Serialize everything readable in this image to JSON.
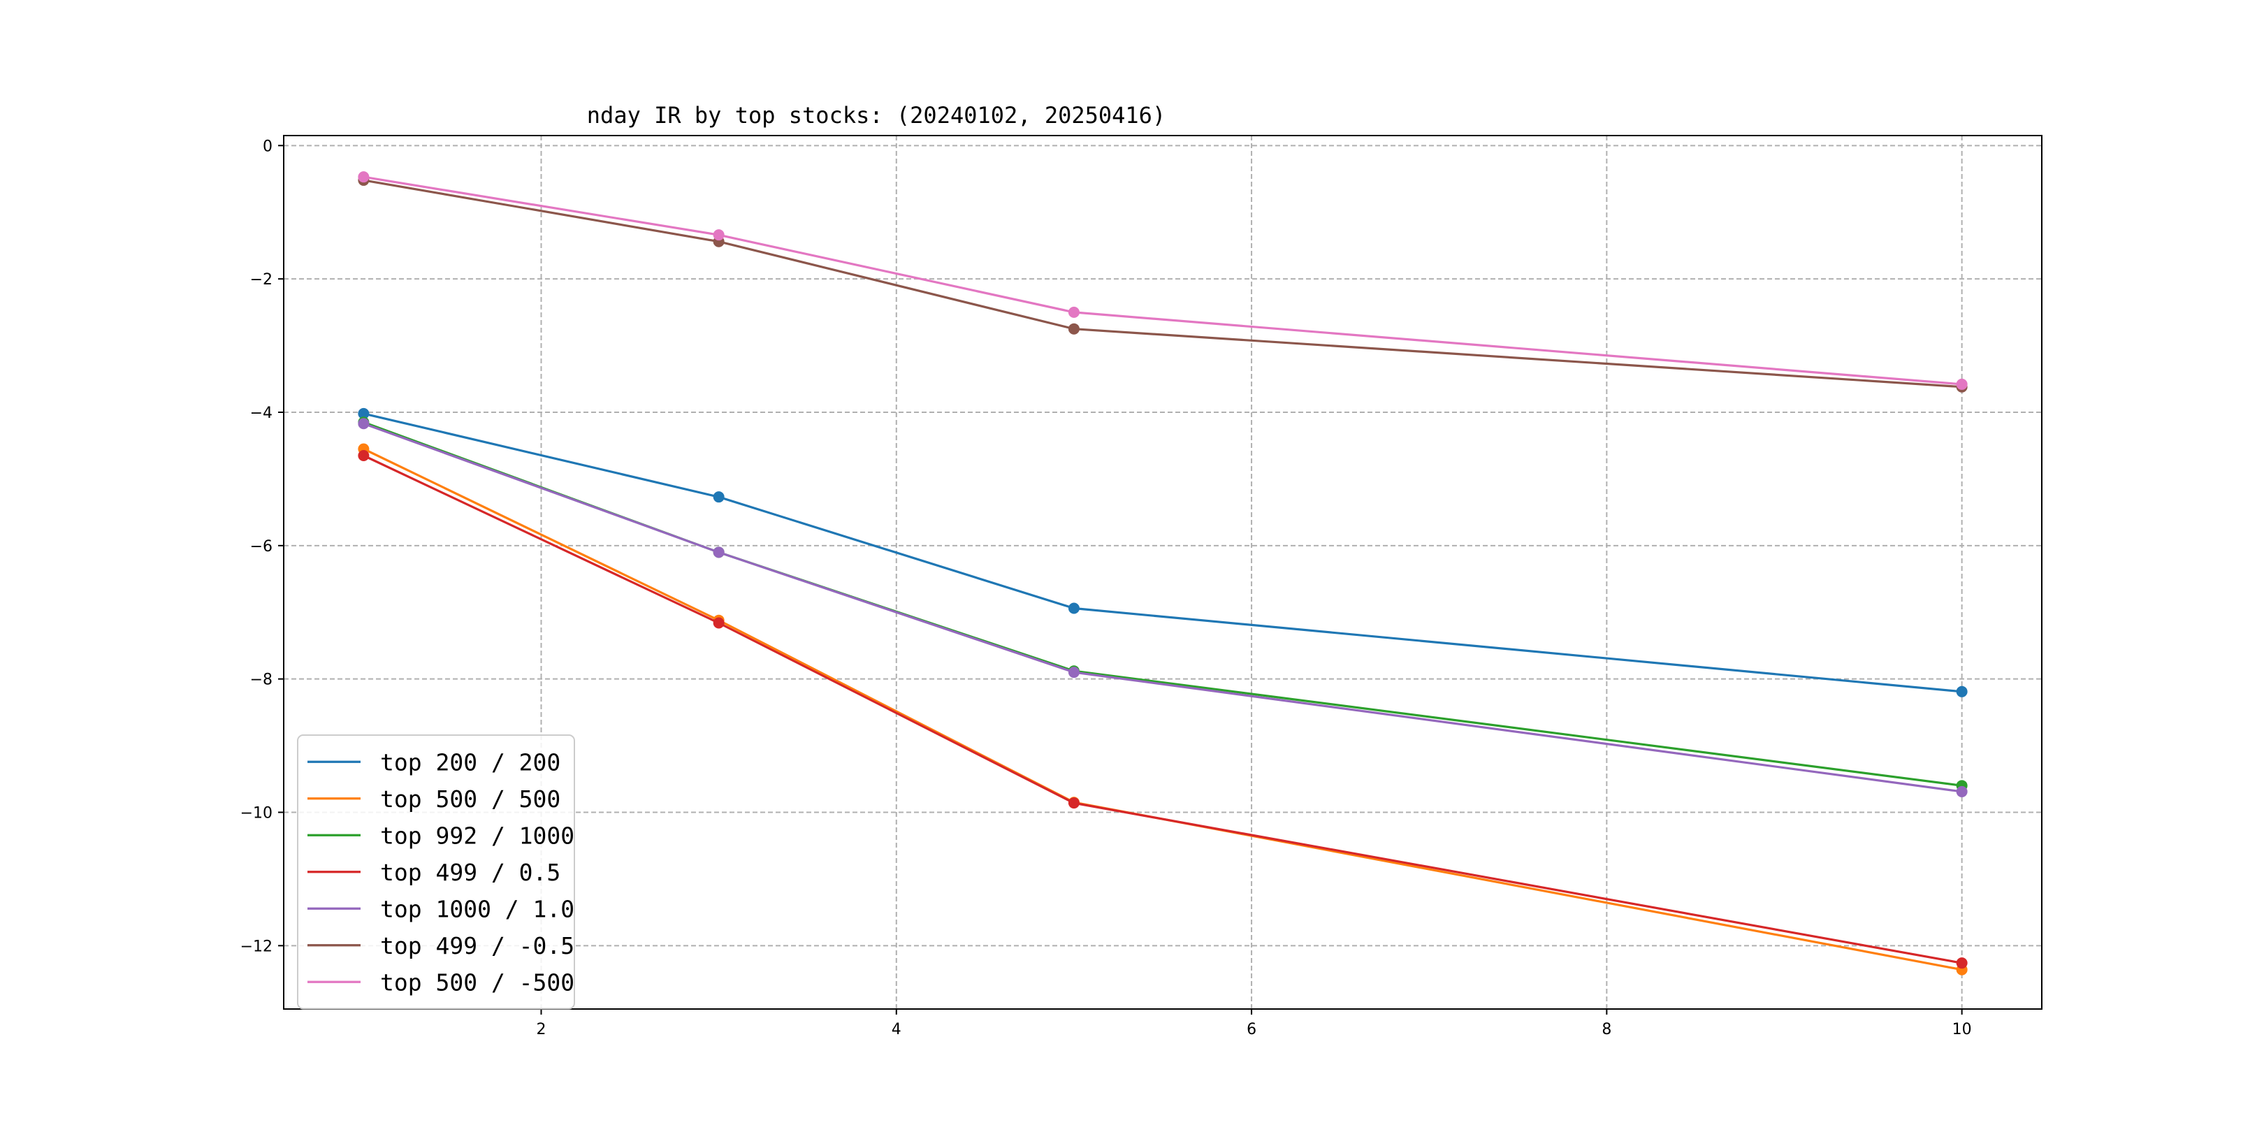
{
  "chart_data": {
    "type": "line",
    "title": "nday IR by top stocks: (20240102, 20250416)",
    "xlabel": "",
    "ylabel": "",
    "x": [
      1,
      3,
      5,
      10
    ],
    "xlim": [
      0.55,
      10.45
    ],
    "ylim": [
      -12.95,
      0.15
    ],
    "xticks": [
      2,
      4,
      6,
      8,
      10
    ],
    "yticks": [
      0,
      -2,
      -4,
      -6,
      -8,
      -10,
      -12
    ],
    "grid": true,
    "legend_position": "lower-left",
    "series": [
      {
        "name": "top 200 / 200",
        "color": "#1f77b4",
        "values": [
          -4.02,
          -5.27,
          -6.94,
          -8.19
        ]
      },
      {
        "name": "top 500 / 500",
        "color": "#ff7f0e",
        "values": [
          -4.55,
          -7.12,
          -9.85,
          -12.36
        ]
      },
      {
        "name": "top 992 / 1000",
        "color": "#2ca02c",
        "values": [
          -4.15,
          -6.1,
          -7.88,
          -9.6
        ]
      },
      {
        "name": "top 499 / 0.5",
        "color": "#d62728",
        "values": [
          -4.65,
          -7.16,
          -9.86,
          -12.26
        ]
      },
      {
        "name": "top 1000 / 1.0",
        "color": "#9467bd",
        "values": [
          -4.17,
          -6.1,
          -7.9,
          -9.69
        ]
      },
      {
        "name": "top 499 / -0.5",
        "color": "#8c564b",
        "values": [
          -0.52,
          -1.44,
          -2.75,
          -3.62
        ]
      },
      {
        "name": "top 500 / -500",
        "color": "#e377c2",
        "values": [
          -0.47,
          -1.34,
          -2.5,
          -3.58
        ]
      }
    ]
  }
}
